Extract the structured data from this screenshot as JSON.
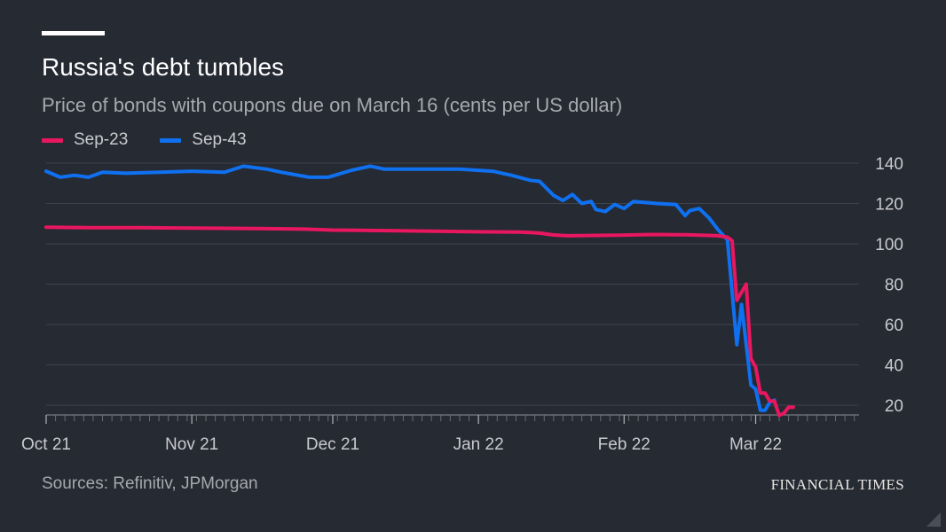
{
  "header": {
    "title": "Russia's debt tumbles",
    "subtitle": "Price of bonds with coupons due on March 16 (cents per US dollar)"
  },
  "footer": {
    "source": "Sources: Refinitiv, JPMorgan",
    "brand": "FINANCIAL TIMES"
  },
  "chart_data": {
    "type": "line",
    "title": "Russia's debt tumbles",
    "subtitle": "Price of bonds with coupons due on March 16 (cents per US dollar)",
    "xlabel": "",
    "ylabel": "",
    "xlim": [
      "2021-10-01",
      "2022-03-23"
    ],
    "ylim": [
      15,
      140
    ],
    "y_ticks": [
      20,
      40,
      60,
      80,
      100,
      120,
      140
    ],
    "x_ticks": [
      {
        "date": "2021-10-01",
        "label": "Oct 21"
      },
      {
        "date": "2021-11-01",
        "label": "Nov 21"
      },
      {
        "date": "2021-12-01",
        "label": "Dec 21"
      },
      {
        "date": "2022-01-01",
        "label": "Jan 22"
      },
      {
        "date": "2022-02-01",
        "label": "Feb 22"
      },
      {
        "date": "2022-03-01",
        "label": "Mar 22"
      }
    ],
    "y_axis_side": "right",
    "grid": true,
    "legend_position": "top-left",
    "series": [
      {
        "name": "Sep-23",
        "color": "#e9175f",
        "points": [
          [
            "2021-10-01",
            108.2
          ],
          [
            "2021-10-10",
            108.0
          ],
          [
            "2021-10-20",
            108.0
          ],
          [
            "2021-11-01",
            107.8
          ],
          [
            "2021-11-15",
            107.6
          ],
          [
            "2021-11-25",
            107.3
          ],
          [
            "2021-12-01",
            106.8
          ],
          [
            "2021-12-15",
            106.5
          ],
          [
            "2021-12-31",
            106.0
          ],
          [
            "2022-01-10",
            105.8
          ],
          [
            "2022-01-14",
            105.3
          ],
          [
            "2022-01-17",
            104.4
          ],
          [
            "2022-01-20",
            104.0
          ],
          [
            "2022-01-31",
            104.3
          ],
          [
            "2022-02-07",
            104.6
          ],
          [
            "2022-02-14",
            104.5
          ],
          [
            "2022-02-18",
            104.2
          ],
          [
            "2022-02-21",
            104.0
          ],
          [
            "2022-02-23",
            103.3
          ],
          [
            "2022-02-24",
            101.5
          ],
          [
            "2022-02-25",
            72.0
          ],
          [
            "2022-02-26",
            76.0
          ],
          [
            "2022-02-27",
            80.0
          ],
          [
            "2022-02-28",
            43.0
          ],
          [
            "2022-03-01",
            39.0
          ],
          [
            "2022-03-02",
            26.0
          ],
          [
            "2022-03-03",
            26.0
          ],
          [
            "2022-03-04",
            22.0
          ],
          [
            "2022-03-05",
            22.0
          ],
          [
            "2022-03-06",
            15.0
          ],
          [
            "2022-03-07",
            16.0
          ],
          [
            "2022-03-08",
            19.0
          ],
          [
            "2022-03-09",
            19.0
          ]
        ]
      },
      {
        "name": "Sep-43",
        "color": "#0f70f0",
        "points": [
          [
            "2021-10-01",
            136.0
          ],
          [
            "2021-10-04",
            133.0
          ],
          [
            "2021-10-07",
            134.0
          ],
          [
            "2021-10-10",
            133.0
          ],
          [
            "2021-10-13",
            135.5
          ],
          [
            "2021-10-18",
            135.0
          ],
          [
            "2021-10-25",
            135.5
          ],
          [
            "2021-11-01",
            136.0
          ],
          [
            "2021-11-08",
            135.5
          ],
          [
            "2021-11-12",
            138.5
          ],
          [
            "2021-11-17",
            137.0
          ],
          [
            "2021-11-20",
            135.5
          ],
          [
            "2021-11-26",
            133.0
          ],
          [
            "2021-11-30",
            133.0
          ],
          [
            "2021-12-05",
            136.5
          ],
          [
            "2021-12-09",
            138.5
          ],
          [
            "2021-12-12",
            137.0
          ],
          [
            "2021-12-20",
            137.0
          ],
          [
            "2021-12-28",
            137.0
          ],
          [
            "2022-01-04",
            136.0
          ],
          [
            "2022-01-08",
            134.0
          ],
          [
            "2022-01-12",
            131.5
          ],
          [
            "2022-01-14",
            131.0
          ],
          [
            "2022-01-17",
            124.0
          ],
          [
            "2022-01-19",
            121.5
          ],
          [
            "2022-01-21",
            124.5
          ],
          [
            "2022-01-23",
            120.0
          ],
          [
            "2022-01-25",
            121.0
          ],
          [
            "2022-01-26",
            117.0
          ],
          [
            "2022-01-28",
            116.0
          ],
          [
            "2022-01-30",
            119.5
          ],
          [
            "2022-02-01",
            117.5
          ],
          [
            "2022-02-03",
            121.0
          ],
          [
            "2022-02-08",
            120.0
          ],
          [
            "2022-02-12",
            119.5
          ],
          [
            "2022-02-14",
            114.0
          ],
          [
            "2022-02-15",
            116.5
          ],
          [
            "2022-02-17",
            117.5
          ],
          [
            "2022-02-19",
            113.0
          ],
          [
            "2022-02-21",
            107.0
          ],
          [
            "2022-02-23",
            102.0
          ],
          [
            "2022-02-25",
            50.0
          ],
          [
            "2022-02-26",
            70.0
          ],
          [
            "2022-02-28",
            30.0
          ],
          [
            "2022-03-01",
            28.0
          ],
          [
            "2022-03-02",
            17.5
          ],
          [
            "2022-03-03",
            17.5
          ],
          [
            "2022-03-04",
            21.5
          ],
          [
            "2022-03-05",
            22.5
          ]
        ]
      }
    ]
  }
}
